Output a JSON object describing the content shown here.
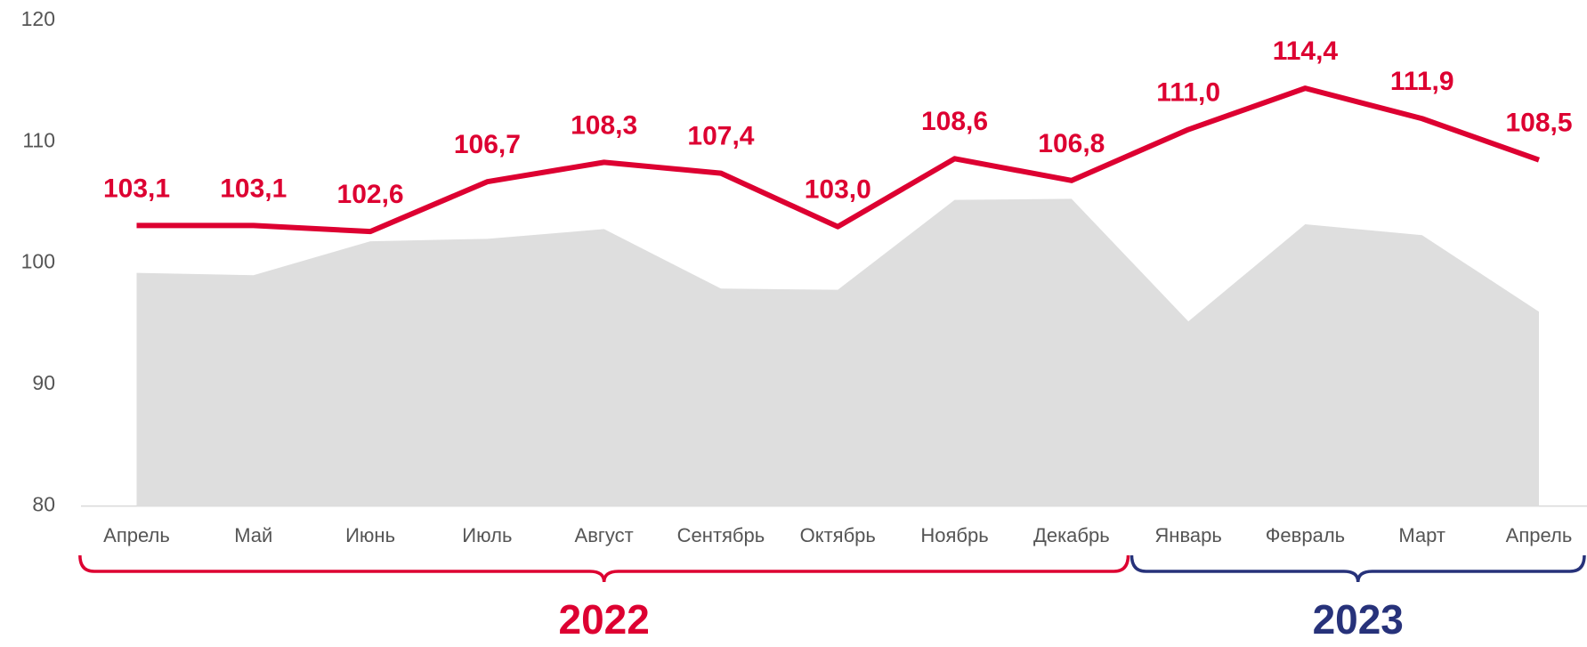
{
  "chart_data": {
    "type": "line",
    "categories": [
      "Апрель",
      "Май",
      "Июнь",
      "Июль",
      "Август",
      "Сентябрь",
      "Октябрь",
      "Ноябрь",
      "Декабрь",
      "Январь",
      "Февраль",
      "Март",
      "Апрель"
    ],
    "series": [
      {
        "color": "#dd0031",
        "values": [
          103.1,
          103.1,
          102.6,
          106.7,
          108.3,
          107.4,
          103.0,
          108.6,
          106.8,
          111.0,
          114.4,
          111.9,
          108.5
        ],
        "value_labels": [
          "103,1",
          "103,1",
          "102,6",
          "106,7",
          "108,3",
          "107,4",
          "103,0",
          "108,6",
          "106,8",
          "111,0",
          "114,4",
          "111,9",
          "108,5"
        ]
      },
      {
        "color": "#dedede",
        "kind": "area",
        "values": [
          99.2,
          99.0,
          101.8,
          102.0,
          102.8,
          97.9,
          97.8,
          105.2,
          105.3,
          95.2,
          103.2,
          102.3,
          96.0
        ]
      }
    ],
    "ylim": [
      80,
      120
    ],
    "yticks": [
      80,
      90,
      100,
      110,
      120
    ],
    "groups": [
      {
        "label": "2022",
        "start": 0,
        "end": 8,
        "color": "#dd0031"
      },
      {
        "label": "2023",
        "start": 9,
        "end": 12,
        "color": "#27327a"
      }
    ]
  }
}
